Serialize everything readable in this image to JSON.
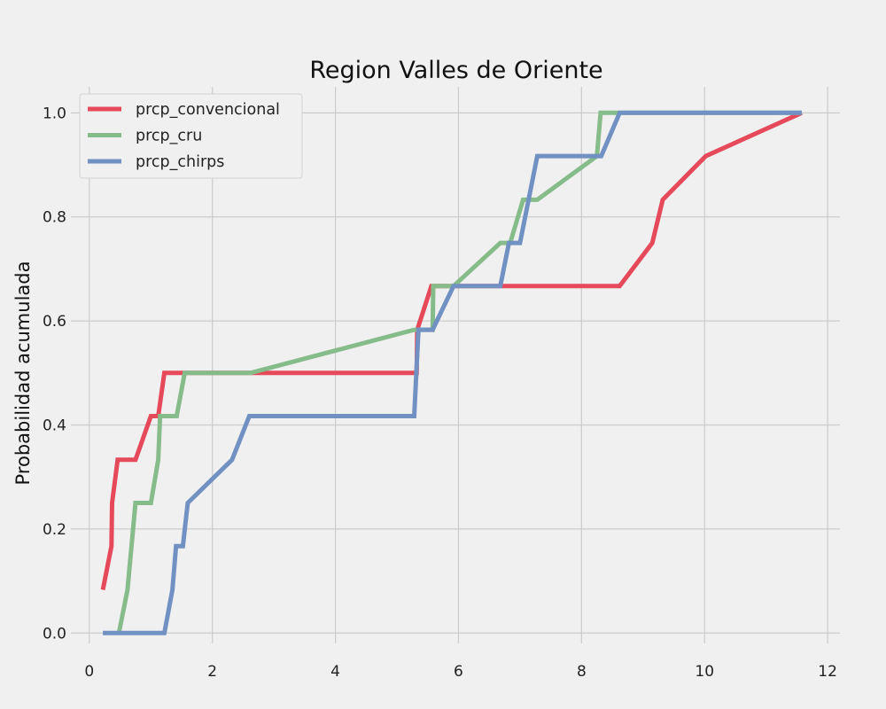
{
  "chart_data": {
    "type": "line",
    "title": "Region Valles de Oriente",
    "xlabel": "",
    "ylabel": "Probabilidad acumulada",
    "xlim": [
      -0.3,
      12.2
    ],
    "ylim": [
      -0.02,
      1.05
    ],
    "x_ticks": [
      0,
      2,
      4,
      6,
      8,
      10,
      12
    ],
    "y_ticks": [
      0.0,
      0.2,
      0.4,
      0.6,
      0.8,
      1.0
    ],
    "x_tick_labels": [
      "0",
      "2",
      "4",
      "6",
      "8",
      "10",
      "12"
    ],
    "y_tick_labels": [
      "0.0",
      "0.2",
      "0.4",
      "0.6",
      "0.8",
      "1.0"
    ],
    "grid": true,
    "legend_position": "top-left",
    "series": [
      {
        "name": "prcp_convencional",
        "color": "#e5495a",
        "points": [
          [
            0.22,
            0.083
          ],
          [
            0.36,
            0.167
          ],
          [
            0.37,
            0.25
          ],
          [
            0.46,
            0.333
          ],
          [
            0.75,
            0.333
          ],
          [
            1.0,
            0.417
          ],
          [
            1.12,
            0.417
          ],
          [
            1.22,
            0.5
          ],
          [
            5.32,
            0.5
          ],
          [
            5.33,
            0.583
          ],
          [
            5.56,
            0.667
          ],
          [
            8.62,
            0.667
          ],
          [
            9.15,
            0.75
          ],
          [
            9.32,
            0.833
          ],
          [
            10.02,
            0.917
          ],
          [
            11.58,
            1.0
          ]
        ]
      },
      {
        "name": "prcp_cru",
        "color": "#86bb8a",
        "points": [
          [
            0.48,
            0.0
          ],
          [
            0.62,
            0.083
          ],
          [
            0.75,
            0.25
          ],
          [
            1.0,
            0.25
          ],
          [
            1.12,
            0.333
          ],
          [
            1.15,
            0.417
          ],
          [
            1.42,
            0.417
          ],
          [
            1.55,
            0.5
          ],
          [
            2.62,
            0.5
          ],
          [
            5.28,
            0.583
          ],
          [
            5.58,
            0.583
          ],
          [
            5.59,
            0.667
          ],
          [
            5.92,
            0.667
          ],
          [
            6.68,
            0.75
          ],
          [
            6.84,
            0.75
          ],
          [
            7.05,
            0.833
          ],
          [
            7.28,
            0.833
          ],
          [
            8.25,
            0.917
          ],
          [
            8.31,
            1.0
          ],
          [
            11.58,
            1.0
          ]
        ]
      },
      {
        "name": "prcp_chirps",
        "color": "#7191c3",
        "points": [
          [
            0.22,
            0.0
          ],
          [
            1.22,
            0.0
          ],
          [
            1.35,
            0.083
          ],
          [
            1.41,
            0.167
          ],
          [
            1.52,
            0.167
          ],
          [
            1.6,
            0.25
          ],
          [
            2.32,
            0.333
          ],
          [
            2.6,
            0.417
          ],
          [
            5.28,
            0.417
          ],
          [
            5.35,
            0.583
          ],
          [
            5.58,
            0.583
          ],
          [
            5.92,
            0.667
          ],
          [
            6.68,
            0.667
          ],
          [
            6.82,
            0.75
          ],
          [
            7.0,
            0.75
          ],
          [
            7.28,
            0.917
          ],
          [
            8.32,
            0.917
          ],
          [
            8.62,
            1.0
          ],
          [
            11.58,
            1.0
          ]
        ]
      }
    ]
  }
}
